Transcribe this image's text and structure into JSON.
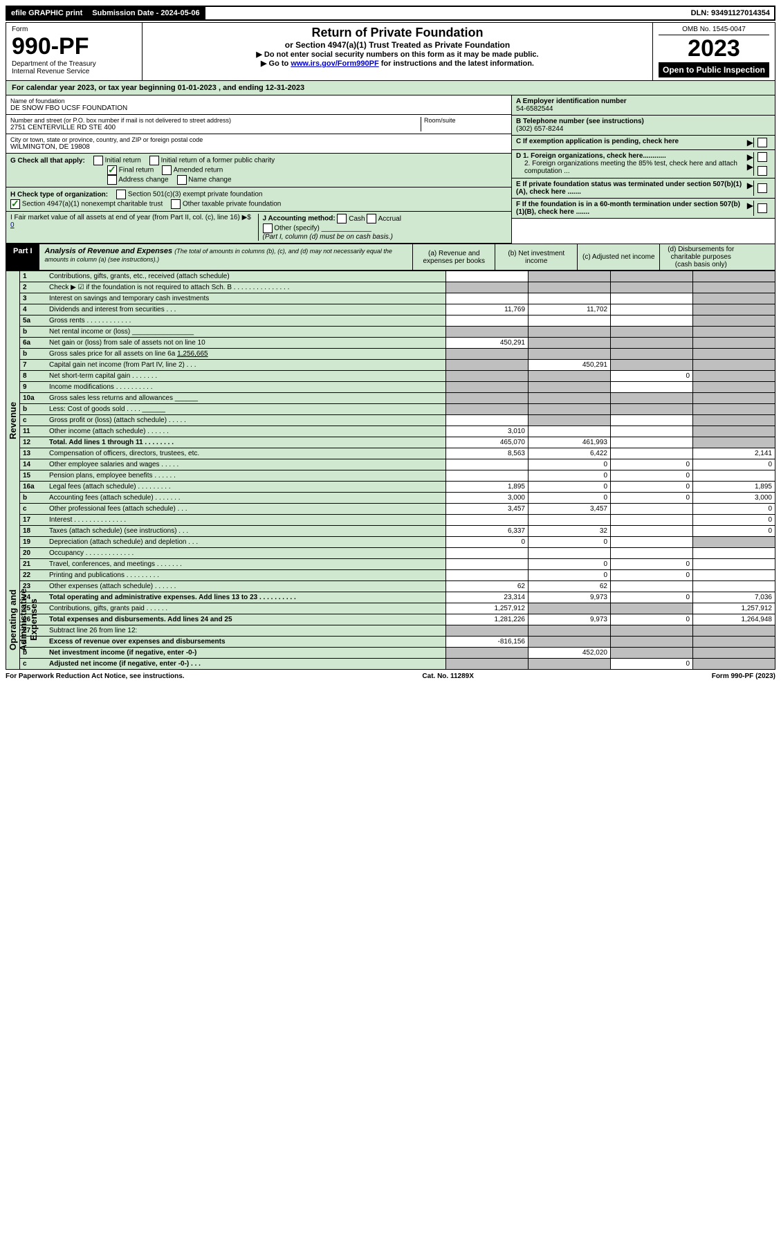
{
  "top": {
    "efile": "efile GRAPHIC print",
    "sub_label": "Submission Date - 2024-05-06",
    "dln": "DLN: 93491127014354"
  },
  "header": {
    "form_label": "Form",
    "form_no": "990-PF",
    "dept": "Department of the Treasury\nInternal Revenue Service",
    "title": "Return of Private Foundation",
    "subtitle": "or Section 4947(a)(1) Trust Treated as Private Foundation",
    "note1": "▶ Do not enter social security numbers on this form as it may be made public.",
    "note2_prefix": "▶ Go to ",
    "note2_link": "www.irs.gov/Form990PF",
    "note2_suffix": " for instructions and the latest information.",
    "omb": "OMB No. 1545-0047",
    "year": "2023",
    "open": "Open to Public Inspection"
  },
  "calendar": "For calendar year 2023, or tax year beginning 01-01-2023                    , and ending 12-31-2023",
  "foundation": {
    "name_label": "Name of foundation",
    "name": "DE SNOW FBO UCSF FOUNDATION",
    "addr_label": "Number and street (or P.O. box number if mail is not delivered to street address)",
    "addr": "2751 CENTERVILLE RD STE 400",
    "room_label": "Room/suite",
    "city_label": "City or town, state or province, country, and ZIP or foreign postal code",
    "city": "WILMINGTON, DE  19808"
  },
  "right_info": {
    "a_label": "A Employer identification number",
    "a_val": "54-6582544",
    "b_label": "B Telephone number (see instructions)",
    "b_val": "(302) 657-8244",
    "c_label": "C If exemption application is pending, check here",
    "d1_label": "D 1. Foreign organizations, check here............",
    "d2_label": "2. Foreign organizations meeting the 85% test, check here and attach computation ...",
    "e_label": "E  If private foundation status was terminated under section 507(b)(1)(A), check here .......",
    "f_label": "F  If the foundation is in a 60-month termination under section 507(b)(1)(B), check here ......."
  },
  "g": {
    "label": "G Check all that apply:",
    "initial": "Initial return",
    "initial_former": "Initial return of a former public charity",
    "final": "Final return",
    "amended": "Amended return",
    "address": "Address change",
    "name": "Name change"
  },
  "h": {
    "label": "H Check type of organization:",
    "s501": "Section 501(c)(3) exempt private foundation",
    "s4947": "Section 4947(a)(1) nonexempt charitable trust",
    "other": "Other taxable private foundation"
  },
  "i": {
    "label": "I Fair market value of all assets at end of year (from Part II, col. (c), line 16) ▶$",
    "val": "0"
  },
  "j": {
    "label": "J Accounting method:",
    "cash": "Cash",
    "accrual": "Accrual",
    "other": "Other (specify)",
    "note": "(Part I, column (d) must be on cash basis.)"
  },
  "part1": {
    "label": "Part I",
    "title": "Analysis of Revenue and Expenses",
    "sub": " (The total of amounts in columns (b), (c), and (d) may not necessarily equal the amounts in column (a) (see instructions).)",
    "col_a": "(a)   Revenue and expenses per books",
    "col_b": "(b)   Net investment income",
    "col_c": "(c)   Adjusted net income",
    "col_d": "(d)   Disbursements for charitable purposes (cash basis only)"
  },
  "revenue_label": "Revenue",
  "expenses_label": "Operating and Administrative Expenses",
  "gross_sales_6a": "1,256,665",
  "rows": [
    {
      "no": "1",
      "desc": "Contributions, gifts, grants, etc., received (attach schedule)",
      "a": "",
      "b": "shaded",
      "c": "shaded",
      "d": "shaded"
    },
    {
      "no": "2",
      "desc": "Check ▶ ☑ if the foundation is not required to attach Sch. B     .  .  .  .  .  .  .  .  .  .  .  .  .  .  .",
      "a": "shaded",
      "b": "shaded",
      "c": "shaded",
      "d": "shaded"
    },
    {
      "no": "3",
      "desc": "Interest on savings and temporary cash investments",
      "a": "",
      "b": "",
      "c": "",
      "d": "shaded"
    },
    {
      "no": "4",
      "desc": "Dividends and interest from securities      .   .   .",
      "a": "11,769",
      "b": "11,702",
      "c": "",
      "d": "shaded"
    },
    {
      "no": "5a",
      "desc": "Gross rents     .   .   .   .   .   .   .   .   .   .   .   .",
      "a": "",
      "b": "",
      "c": "",
      "d": "shaded"
    },
    {
      "no": "b",
      "desc": "Net rental income or (loss)  ________________",
      "a": "shaded",
      "b": "shaded",
      "c": "shaded",
      "d": "shaded"
    },
    {
      "no": "6a",
      "desc": "Net gain or (loss) from sale of assets not on line 10",
      "a": "450,291",
      "b": "shaded",
      "c": "shaded",
      "d": "shaded"
    },
    {
      "no": "b",
      "desc": "Gross sales price for all assets on line 6a _________",
      "a": "shaded",
      "b": "shaded",
      "c": "shaded",
      "d": "shaded"
    },
    {
      "no": "7",
      "desc": "Capital gain net income (from Part IV, line 2)    .   .   .",
      "a": "shaded",
      "b": "450,291",
      "c": "shaded",
      "d": "shaded"
    },
    {
      "no": "8",
      "desc": "Net short-term capital gain   .   .   .   .   .   .   .",
      "a": "shaded",
      "b": "shaded",
      "c": "0",
      "d": "shaded"
    },
    {
      "no": "9",
      "desc": "Income modifications .   .   .   .   .   .   .   .   .   .",
      "a": "shaded",
      "b": "shaded",
      "c": "",
      "d": "shaded"
    },
    {
      "no": "10a",
      "desc": "Gross sales less returns and allowances  ______",
      "a": "shaded",
      "b": "shaded",
      "c": "shaded",
      "d": "shaded"
    },
    {
      "no": "b",
      "desc": "Less: Cost of goods sold      .   .   .   .   ______",
      "a": "shaded",
      "b": "shaded",
      "c": "shaded",
      "d": "shaded"
    },
    {
      "no": "c",
      "desc": "Gross profit or (loss) (attach schedule)       .   .   .   .   .",
      "a": "",
      "b": "shaded",
      "c": "",
      "d": "shaded"
    },
    {
      "no": "11",
      "desc": "Other income (attach schedule)     .   .   .   .   .   .",
      "a": "3,010",
      "b": "",
      "c": "",
      "d": "shaded"
    },
    {
      "no": "12",
      "desc": "Total. Add lines 1 through 11    .   .   .   .   .   .   .   .",
      "a": "465,070",
      "b": "461,993",
      "c": "",
      "d": "shaded",
      "bold": true
    },
    {
      "no": "13",
      "desc": "Compensation of officers, directors, trustees, etc.",
      "a": "8,563",
      "b": "6,422",
      "c": "",
      "d": "2,141"
    },
    {
      "no": "14",
      "desc": "Other employee salaries and wages     .   .   .   .   .",
      "a": "",
      "b": "0",
      "c": "0",
      "d": "0"
    },
    {
      "no": "15",
      "desc": "Pension plans, employee benefits   .   .   .   .   .   .",
      "a": "",
      "b": "0",
      "c": "0",
      "d": ""
    },
    {
      "no": "16a",
      "desc": "Legal fees (attach schedule) .   .   .   .   .   .   .   .   .",
      "a": "1,895",
      "b": "0",
      "c": "0",
      "d": "1,895"
    },
    {
      "no": "b",
      "desc": "Accounting fees (attach schedule) .   .   .   .   .   .   .",
      "a": "3,000",
      "b": "0",
      "c": "0",
      "d": "3,000"
    },
    {
      "no": "c",
      "desc": "Other professional fees (attach schedule)     .   .   .",
      "a": "3,457",
      "b": "3,457",
      "c": "",
      "d": "0"
    },
    {
      "no": "17",
      "desc": "Interest  .   .   .   .   .   .   .   .   .   .   .   .   .   .",
      "a": "",
      "b": "",
      "c": "",
      "d": "0"
    },
    {
      "no": "18",
      "desc": "Taxes (attach schedule) (see instructions)       .   .   .",
      "a": "6,337",
      "b": "32",
      "c": "",
      "d": "0"
    },
    {
      "no": "19",
      "desc": "Depreciation (attach schedule) and depletion     .   .   .",
      "a": "0",
      "b": "0",
      "c": "",
      "d": "shaded"
    },
    {
      "no": "20",
      "desc": "Occupancy .   .   .   .   .   .   .   .   .   .   .   .   .",
      "a": "",
      "b": "",
      "c": "",
      "d": ""
    },
    {
      "no": "21",
      "desc": "Travel, conferences, and meetings .   .   .   .   .   .   .",
      "a": "",
      "b": "0",
      "c": "0",
      "d": ""
    },
    {
      "no": "22",
      "desc": "Printing and publications .   .   .   .   .   .   .   .   .",
      "a": "",
      "b": "0",
      "c": "0",
      "d": ""
    },
    {
      "no": "23",
      "desc": "Other expenses (attach schedule)   .   .   .   .   .   .",
      "a": "62",
      "b": "62",
      "c": "",
      "d": ""
    },
    {
      "no": "24",
      "desc": "Total operating and administrative expenses. Add lines 13 to 23   .   .   .   .   .   .   .   .   .   .",
      "a": "23,314",
      "b": "9,973",
      "c": "0",
      "d": "7,036",
      "bold": true
    },
    {
      "no": "25",
      "desc": "Contributions, gifts, grants paid      .   .   .   .   .   .",
      "a": "1,257,912",
      "b": "shaded",
      "c": "shaded",
      "d": "1,257,912"
    },
    {
      "no": "26",
      "desc": "Total expenses and disbursements. Add lines 24 and 25",
      "a": "1,281,226",
      "b": "9,973",
      "c": "0",
      "d": "1,264,948",
      "bold": true
    },
    {
      "no": "27",
      "desc": "Subtract line 26 from line 12:",
      "a": "shaded",
      "b": "shaded",
      "c": "shaded",
      "d": "shaded"
    },
    {
      "no": "a",
      "desc": "Excess of revenue over expenses and disbursements",
      "a": "-816,156",
      "b": "shaded",
      "c": "shaded",
      "d": "shaded",
      "bold": true
    },
    {
      "no": "b",
      "desc": "Net investment income (if negative, enter -0-)",
      "a": "shaded",
      "b": "452,020",
      "c": "shaded",
      "d": "shaded",
      "bold": true
    },
    {
      "no": "c",
      "desc": "Adjusted net income (if negative, enter -0-)   .   .   .",
      "a": "shaded",
      "b": "shaded",
      "c": "0",
      "d": "shaded",
      "bold": true
    }
  ],
  "footer": {
    "left": "For Paperwork Reduction Act Notice, see instructions.",
    "center": "Cat. No. 11289X",
    "right": "Form 990-PF (2023)"
  }
}
